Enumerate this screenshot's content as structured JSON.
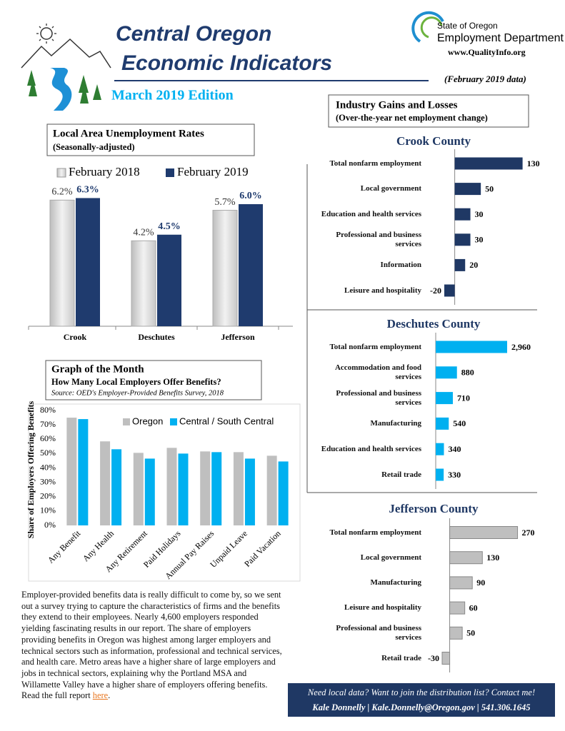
{
  "header": {
    "title_line1": "Central Oregon",
    "title_line2": "Economic Indicators",
    "edition": "March 2019 Edition",
    "agency_line1": "State of Oregon",
    "agency_line2": "Employment Department",
    "website": "www.QualityInfo.org",
    "data_note": "(February 2019 data)"
  },
  "industry_section": {
    "title": "Industry Gains and Losses",
    "subtitle": "(Over-the-year net employment change)"
  },
  "chart_data": [
    {
      "type": "bar",
      "title": "Local Area Unemployment Rates",
      "subtitle": "(Seasonally-adjusted)",
      "categories": [
        "Crook",
        "Deschutes",
        "Jefferson"
      ],
      "series": [
        {
          "name": "February 2018",
          "color": "#d4d4d4",
          "values": [
            6.2,
            4.2,
            5.7
          ],
          "value_labels": [
            "6.2%",
            "4.2%",
            "5.7%"
          ]
        },
        {
          "name": "February 2019",
          "color": "#1f3b6e",
          "values": [
            6.3,
            4.5,
            6.0
          ],
          "value_labels": [
            "6.3%",
            "4.5%",
            "6.0%"
          ]
        }
      ]
    },
    {
      "type": "bar",
      "title": "Graph of the Month",
      "subtitle": "How Many Local Employers Offer Benefits?",
      "source": "Source: OED's Employer-Provided Benefits Survey, 2018",
      "y_label": "Share of Employers Offering Benefits",
      "categories": [
        "Any Benefit",
        "Any Health",
        "Any Retirement",
        "Paid Holidays",
        "Annual Pay Raises",
        "Unpaid Leave",
        "Paid Vacation"
      ],
      "series": [
        {
          "name": "Oregon",
          "color": "#bfbfbf",
          "values": [
            75,
            58.5,
            50.5,
            54,
            51.5,
            51,
            48.5
          ]
        },
        {
          "name": "Central / South Central",
          "color": "#00b0f0",
          "values": [
            74,
            53,
            46.5,
            50,
            51,
            46.5,
            44.5
          ]
        }
      ],
      "ylim": [
        0,
        80
      ],
      "yticks": [
        {
          "value": 0,
          "label": "0%"
        },
        {
          "value": 10,
          "label": "10%"
        },
        {
          "value": 20,
          "label": "20%"
        },
        {
          "value": 30,
          "label": "30%"
        },
        {
          "value": 40,
          "label": "40%"
        },
        {
          "value": 50,
          "label": "50%"
        },
        {
          "value": 60,
          "label": "60%"
        },
        {
          "value": 70,
          "label": "70%"
        },
        {
          "value": 80,
          "label": "80%"
        }
      ]
    },
    {
      "type": "hbar",
      "title": "Crook County",
      "color": "#1f3864",
      "categories": [
        "Total nonfarm employment",
        "Local government",
        "Education and health services",
        "Professional and business services",
        "Information",
        "Leisure and hospitality"
      ],
      "values": [
        130,
        50,
        30,
        30,
        20,
        -20
      ]
    },
    {
      "type": "hbar",
      "title": "Deschutes County",
      "color": "#00b0f0",
      "categories": [
        "Total nonfarm employment",
        "Accommodation and food services",
        "Professional and business services",
        "Manufacturing",
        "Education and health services",
        "Retail trade"
      ],
      "values": [
        2960,
        880,
        710,
        540,
        340,
        330
      ],
      "value_labels": [
        "2,960",
        "880",
        "710",
        "540",
        "340",
        "330"
      ]
    },
    {
      "type": "hbar",
      "title": "Jefferson County",
      "color": "#bfbfbf",
      "categories": [
        "Total nonfarm employment",
        "Local government",
        "Manufacturing",
        "Leisure and hospitality",
        "Professional and business services",
        "Retail trade"
      ],
      "values": [
        270,
        130,
        90,
        60,
        50,
        -30
      ]
    }
  ],
  "article": {
    "text": "Employer-provided benefits data is really difficult to come by, so we sent out a survey trying to capture the characteristics of firms and the benefits they extend to their employees. Nearly 4,600 employers responded yielding fascinating results in our report. The share of employers providing benefits in Oregon was highest among larger employers and technical sectors such as information, professional and technical services, and health care. Metro areas have a higher share of large employers and jobs in technical sectors, explaining why the Portland MSA and Willamette Valley  have a higher share of employers offering benefits. Read the full report ",
    "link_text": "here",
    "text_after": "."
  },
  "footer": {
    "line1": "Need local data? Want to join the distribution list? Contact me!",
    "line2": "Kale Donnelly  |  Kale.Donnelly@Oregon.gov  |  541.306.1645"
  }
}
